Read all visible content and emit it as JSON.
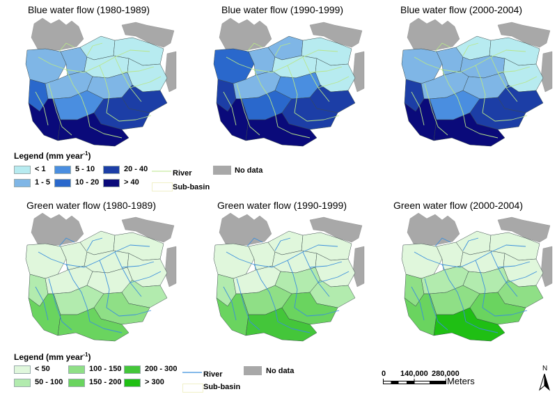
{
  "blue": {
    "titles": [
      "Blue water flow (1980-1989)",
      "Blue water flow (1990-1999)",
      "Blue water flow (2000-2004)"
    ],
    "legend_title_main": "Legend (mm year",
    "legend_title_sup": "-1",
    "legend_title_end": ")",
    "classes": [
      {
        "label": "< 1",
        "color": "#b7ebf0"
      },
      {
        "label": "1 - 5",
        "color": "#7fb6e6"
      },
      {
        "label": "5 - 10",
        "color": "#4a8ee0"
      },
      {
        "label": "10 - 20",
        "color": "#2a68cc"
      },
      {
        "label": "20 - 40",
        "color": "#1c3ea6"
      },
      {
        "label": "> 40",
        "color": "#0a0a7a"
      }
    ],
    "river_label": "River",
    "river_color": "#b8e68a",
    "subbasin_label": "Sub-basin",
    "nodata_label": "No data"
  },
  "green": {
    "titles": [
      "Green water flow (1980-1989)",
      "Green water flow (1990-1999)",
      "Green water flow (2000-2004)"
    ],
    "legend_title_main": "Legend (mm year",
    "legend_title_sup": "-1",
    "legend_title_end": ")",
    "classes": [
      {
        "label": "< 50",
        "color": "#e0f7dc"
      },
      {
        "label": "50 - 100",
        "color": "#b2ebae"
      },
      {
        "label": "100 - 150",
        "color": "#8fdf86"
      },
      {
        "label": "150 - 200",
        "color": "#6ad45f"
      },
      {
        "label": "200 - 300",
        "color": "#44c63a"
      },
      {
        "label": "> 300",
        "color": "#1fbf14"
      }
    ],
    "river_label": "River",
    "river_color": "#3a8fdc",
    "subbasin_label": "Sub-basin",
    "nodata_label": "No data"
  },
  "nodata_color": "#a8a8a8",
  "scale": {
    "tick0": "0",
    "tick1": "140,000",
    "tick2": "280,000",
    "unit": "Meters"
  },
  "north_label": "N"
}
